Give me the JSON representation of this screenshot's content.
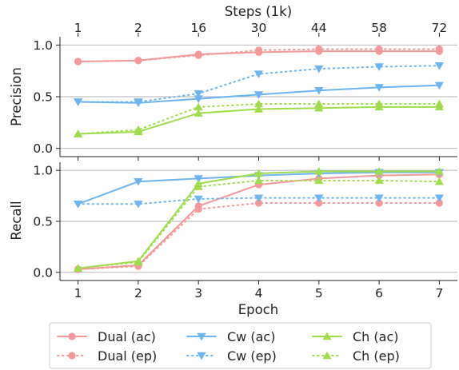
{
  "chart_data": {
    "type": "line",
    "x": [
      1,
      2,
      3,
      4,
      5,
      6,
      7
    ],
    "xlabel": "Epoch",
    "top_axis": {
      "label": "Steps (1k)",
      "tick_labels": [
        "1",
        "2",
        "16",
        "30",
        "44",
        "58",
        "72"
      ]
    },
    "panels": [
      {
        "ylabel": "Precision",
        "ylim": [
          -0.08,
          1.08
        ],
        "yticks": [
          0.0,
          0.5,
          1.0
        ],
        "ytick_labels": [
          "0.0",
          "0.5",
          "1.0"
        ],
        "grid": "horizontal",
        "series": [
          {
            "key": "dual_ac",
            "values": [
              0.84,
              0.85,
              0.91,
              0.93,
              0.94,
              0.94,
              0.94
            ]
          },
          {
            "key": "dual_ep",
            "values": [
              0.84,
              0.85,
              0.9,
              0.95,
              0.96,
              0.96,
              0.96
            ]
          },
          {
            "key": "cw_ac",
            "values": [
              0.45,
              0.44,
              0.48,
              0.52,
              0.56,
              0.59,
              0.61
            ]
          },
          {
            "key": "cw_ep",
            "values": [
              0.45,
              0.45,
              0.53,
              0.72,
              0.77,
              0.79,
              0.8
            ]
          },
          {
            "key": "ch_ac",
            "values": [
              0.14,
              0.16,
              0.34,
              0.38,
              0.39,
              0.4,
              0.4
            ]
          },
          {
            "key": "ch_ep",
            "values": [
              0.14,
              0.18,
              0.4,
              0.43,
              0.43,
              0.43,
              0.43
            ]
          }
        ]
      },
      {
        "ylabel": "Recall",
        "ylim": [
          -0.08,
          1.08
        ],
        "yticks": [
          0.0,
          0.5,
          1.0
        ],
        "ytick_labels": [
          "0.0",
          "0.5",
          "1.0"
        ],
        "grid": "horizontal",
        "series": [
          {
            "key": "dual_ac",
            "values": [
              0.03,
              0.07,
              0.65,
              0.86,
              0.92,
              0.95,
              0.96
            ]
          },
          {
            "key": "dual_ep",
            "values": [
              0.03,
              0.06,
              0.62,
              0.68,
              0.68,
              0.68,
              0.68
            ]
          },
          {
            "key": "cw_ac",
            "values": [
              0.67,
              0.89,
              0.92,
              0.95,
              0.97,
              0.98,
              0.98
            ]
          },
          {
            "key": "cw_ep",
            "values": [
              0.67,
              0.67,
              0.72,
              0.73,
              0.73,
              0.73,
              0.73
            ]
          },
          {
            "key": "ch_ac",
            "values": [
              0.04,
              0.11,
              0.87,
              0.97,
              0.99,
              0.99,
              0.99
            ]
          },
          {
            "key": "ch_ep",
            "values": [
              0.04,
              0.1,
              0.84,
              0.9,
              0.9,
              0.9,
              0.89
            ]
          }
        ]
      }
    ],
    "legend": {
      "placement": "bottom",
      "entries": [
        {
          "key": "dual_ac",
          "label": "Dual (ac)"
        },
        {
          "key": "cw_ac",
          "label": "Cw (ac)"
        },
        {
          "key": "ch_ac",
          "label": "Ch (ac)"
        },
        {
          "key": "dual_ep",
          "label": "Dual (ep)"
        },
        {
          "key": "cw_ep",
          "label": "Cw (ep)"
        },
        {
          "key": "ch_ep",
          "label": "Ch (ep)"
        }
      ]
    },
    "styles": {
      "dual_ac": {
        "color": "#f4989a",
        "marker": "circle",
        "dash": "solid"
      },
      "dual_ep": {
        "color": "#f4989a",
        "marker": "circle",
        "dash": "dotted"
      },
      "cw_ac": {
        "color": "#6cb4f2",
        "marker": "triangle-down",
        "dash": "solid"
      },
      "cw_ep": {
        "color": "#6cb4f2",
        "marker": "triangle-down",
        "dash": "dotted"
      },
      "ch_ac": {
        "color": "#9fdd4c",
        "marker": "triangle-up",
        "dash": "solid"
      },
      "ch_ep": {
        "color": "#9fdd4c",
        "marker": "triangle-up",
        "dash": "dotted"
      }
    }
  }
}
